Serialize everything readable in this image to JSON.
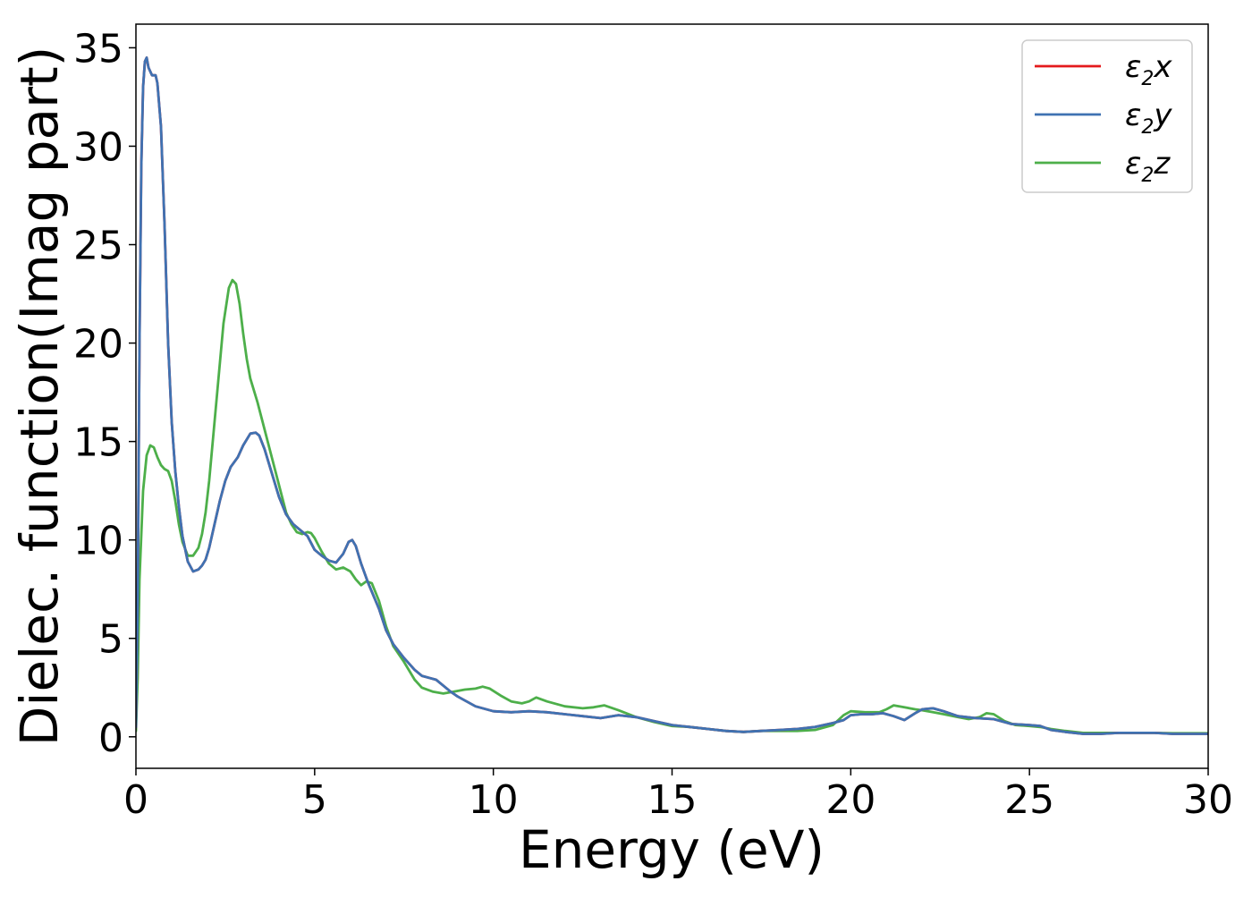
{
  "chart_data": {
    "type": "line",
    "xlabel": "Energy (eV)",
    "ylabel": "Dielec. function(Imag part)",
    "xlim": [
      0,
      30
    ],
    "ylim": [
      -1.6,
      36.2
    ],
    "xticks": [
      0,
      5,
      10,
      15,
      20,
      25,
      30
    ],
    "yticks": [
      0,
      5,
      10,
      15,
      20,
      25,
      30,
      35
    ],
    "xtick_labels": [
      "0",
      "5",
      "10",
      "15",
      "20",
      "25",
      "30"
    ],
    "ytick_labels": [
      "0",
      "5",
      "10",
      "15",
      "20",
      "25",
      "30",
      "35"
    ],
    "legend": {
      "position": "top-right"
    },
    "series": [
      {
        "name": "ε2x",
        "label_main": "ε",
        "label_sub": "2",
        "label_axis": "x",
        "color": "#e41a1c",
        "x": [
          0,
          0.05,
          0.1,
          0.15,
          0.2,
          0.25,
          0.3,
          0.35,
          0.45,
          0.55,
          0.6,
          0.7,
          0.8,
          0.9,
          1.0,
          1.1,
          1.2,
          1.3,
          1.45,
          1.6,
          1.75,
          1.85,
          1.95,
          2.05,
          2.2,
          2.35,
          2.5,
          2.65,
          2.85,
          3.0,
          3.2,
          3.35,
          3.45,
          3.6,
          3.8,
          4.0,
          4.2,
          4.4,
          4.6,
          4.8,
          5.0,
          5.2,
          5.4,
          5.6,
          5.8,
          5.95,
          6.05,
          6.15,
          6.3,
          6.5,
          6.8,
          7.0,
          7.2,
          7.5,
          7.8,
          8.0,
          8.2,
          8.4,
          8.6,
          8.8,
          9.0,
          9.5,
          10.0,
          10.5,
          11.0,
          11.5,
          12.0,
          12.5,
          13.0,
          13.5,
          14.0,
          14.5,
          15.0,
          15.5,
          16.0,
          16.5,
          17.0,
          17.5,
          18.0,
          18.5,
          19.0,
          19.5,
          19.8,
          20.0,
          20.3,
          20.6,
          20.9,
          21.2,
          21.5,
          21.8,
          22.0,
          22.3,
          22.6,
          23.0,
          23.5,
          24.0,
          24.5,
          25.0,
          25.3,
          25.6,
          26.0,
          26.5,
          27.0,
          27.5,
          28.0,
          28.5,
          29.0,
          29.5,
          30.0
        ],
        "values": [
          0.5,
          7.0,
          20.0,
          29.0,
          33.0,
          34.3,
          34.5,
          34.0,
          33.6,
          33.6,
          33.2,
          31.0,
          26.0,
          20.0,
          16.0,
          13.5,
          11.7,
          10.2,
          8.9,
          8.4,
          8.5,
          8.7,
          9.0,
          9.6,
          10.8,
          12.0,
          13.0,
          13.7,
          14.2,
          14.8,
          15.4,
          15.45,
          15.3,
          14.6,
          13.4,
          12.2,
          11.3,
          10.8,
          10.5,
          10.2,
          9.5,
          9.2,
          8.95,
          8.85,
          9.3,
          9.9,
          10.0,
          9.7,
          8.8,
          7.8,
          6.5,
          5.4,
          4.7,
          4.0,
          3.4,
          3.1,
          3.0,
          2.9,
          2.6,
          2.3,
          2.05,
          1.55,
          1.3,
          1.25,
          1.3,
          1.25,
          1.15,
          1.05,
          0.95,
          1.1,
          1.0,
          0.8,
          0.6,
          0.5,
          0.4,
          0.3,
          0.25,
          0.3,
          0.35,
          0.4,
          0.5,
          0.7,
          0.85,
          1.1,
          1.15,
          1.15,
          1.2,
          1.05,
          0.85,
          1.2,
          1.4,
          1.45,
          1.3,
          1.05,
          0.95,
          0.9,
          0.65,
          0.6,
          0.55,
          0.35,
          0.25,
          0.15,
          0.15,
          0.2,
          0.2,
          0.2,
          0.15,
          0.15,
          0.15
        ]
      },
      {
        "name": "ε2y",
        "label_main": "ε",
        "label_sub": "2",
        "label_axis": "y",
        "color": "#3f72b2",
        "x": [
          0,
          0.05,
          0.1,
          0.15,
          0.2,
          0.25,
          0.3,
          0.35,
          0.45,
          0.55,
          0.6,
          0.7,
          0.8,
          0.9,
          1.0,
          1.1,
          1.2,
          1.3,
          1.45,
          1.6,
          1.75,
          1.85,
          1.95,
          2.05,
          2.2,
          2.35,
          2.5,
          2.65,
          2.85,
          3.0,
          3.2,
          3.35,
          3.45,
          3.6,
          3.8,
          4.0,
          4.2,
          4.4,
          4.6,
          4.8,
          5.0,
          5.2,
          5.4,
          5.6,
          5.8,
          5.95,
          6.05,
          6.15,
          6.3,
          6.5,
          6.8,
          7.0,
          7.2,
          7.5,
          7.8,
          8.0,
          8.2,
          8.4,
          8.6,
          8.8,
          9.0,
          9.5,
          10.0,
          10.5,
          11.0,
          11.5,
          12.0,
          12.5,
          13.0,
          13.5,
          14.0,
          14.5,
          15.0,
          15.5,
          16.0,
          16.5,
          17.0,
          17.5,
          18.0,
          18.5,
          19.0,
          19.5,
          19.8,
          20.0,
          20.3,
          20.6,
          20.9,
          21.2,
          21.5,
          21.8,
          22.0,
          22.3,
          22.6,
          23.0,
          23.5,
          24.0,
          24.5,
          25.0,
          25.3,
          25.6,
          26.0,
          26.5,
          27.0,
          27.5,
          28.0,
          28.5,
          29.0,
          29.5,
          30.0
        ],
        "values": [
          0.5,
          7.0,
          20.0,
          29.0,
          33.0,
          34.3,
          34.5,
          34.0,
          33.6,
          33.6,
          33.2,
          31.0,
          26.0,
          20.0,
          16.0,
          13.5,
          11.7,
          10.2,
          8.9,
          8.4,
          8.5,
          8.7,
          9.0,
          9.6,
          10.8,
          12.0,
          13.0,
          13.7,
          14.2,
          14.8,
          15.4,
          15.45,
          15.3,
          14.6,
          13.4,
          12.2,
          11.3,
          10.8,
          10.5,
          10.2,
          9.5,
          9.2,
          8.95,
          8.85,
          9.3,
          9.9,
          10.0,
          9.7,
          8.8,
          7.8,
          6.5,
          5.4,
          4.7,
          4.0,
          3.4,
          3.1,
          3.0,
          2.9,
          2.6,
          2.3,
          2.05,
          1.55,
          1.3,
          1.25,
          1.3,
          1.25,
          1.15,
          1.05,
          0.95,
          1.1,
          1.0,
          0.8,
          0.6,
          0.5,
          0.4,
          0.3,
          0.25,
          0.3,
          0.35,
          0.4,
          0.5,
          0.7,
          0.85,
          1.1,
          1.15,
          1.15,
          1.2,
          1.05,
          0.85,
          1.2,
          1.4,
          1.45,
          1.3,
          1.05,
          0.95,
          0.9,
          0.65,
          0.6,
          0.55,
          0.35,
          0.25,
          0.15,
          0.15,
          0.2,
          0.2,
          0.2,
          0.15,
          0.15,
          0.15
        ]
      },
      {
        "name": "ε2z",
        "label_main": "ε",
        "label_sub": "2",
        "label_axis": "z",
        "color": "#4daf4a",
        "x": [
          0,
          0.05,
          0.1,
          0.2,
          0.3,
          0.4,
          0.5,
          0.6,
          0.7,
          0.8,
          0.9,
          1.0,
          1.1,
          1.2,
          1.3,
          1.45,
          1.6,
          1.75,
          1.85,
          1.95,
          2.05,
          2.15,
          2.3,
          2.45,
          2.6,
          2.7,
          2.8,
          2.9,
          3.0,
          3.1,
          3.2,
          3.4,
          3.6,
          3.8,
          4.0,
          4.2,
          4.35,
          4.5,
          4.65,
          4.8,
          4.9,
          5.0,
          5.2,
          5.4,
          5.6,
          5.8,
          6.0,
          6.15,
          6.3,
          6.45,
          6.6,
          6.8,
          7.0,
          7.2,
          7.5,
          7.8,
          8.0,
          8.3,
          8.6,
          8.9,
          9.2,
          9.5,
          9.7,
          9.9,
          10.2,
          10.5,
          10.8,
          11.0,
          11.2,
          11.5,
          12.0,
          12.5,
          12.8,
          13.1,
          13.5,
          14.0,
          14.5,
          15.0,
          15.5,
          16.0,
          16.5,
          17.0,
          17.5,
          18.0,
          18.5,
          19.0,
          19.5,
          19.8,
          20.0,
          20.4,
          20.8,
          21.0,
          21.2,
          21.5,
          21.8,
          22.0,
          22.3,
          22.6,
          23.0,
          23.3,
          23.6,
          23.8,
          24.0,
          24.3,
          24.6,
          25.0,
          25.3,
          25.6,
          26.0,
          26.5,
          27.0,
          27.5,
          28.0,
          28.5,
          29.0,
          29.5,
          30.0
        ],
        "values": [
          0.3,
          3.0,
          8.0,
          12.5,
          14.3,
          14.8,
          14.7,
          14.2,
          13.8,
          13.6,
          13.5,
          13.0,
          12.0,
          10.8,
          9.9,
          9.2,
          9.2,
          9.6,
          10.3,
          11.4,
          13.0,
          15.0,
          18.0,
          21.0,
          22.8,
          23.2,
          23.0,
          22.0,
          20.5,
          19.2,
          18.2,
          17.0,
          15.6,
          14.2,
          12.8,
          11.4,
          10.8,
          10.4,
          10.3,
          10.4,
          10.35,
          10.1,
          9.4,
          8.8,
          8.5,
          8.6,
          8.4,
          8.0,
          7.7,
          7.9,
          7.8,
          6.9,
          5.6,
          4.6,
          3.8,
          2.9,
          2.5,
          2.3,
          2.2,
          2.3,
          2.4,
          2.45,
          2.55,
          2.45,
          2.1,
          1.8,
          1.7,
          1.8,
          2.0,
          1.8,
          1.55,
          1.45,
          1.5,
          1.6,
          1.35,
          1.0,
          0.75,
          0.55,
          0.5,
          0.4,
          0.3,
          0.25,
          0.3,
          0.3,
          0.3,
          0.35,
          0.6,
          1.1,
          1.3,
          1.25,
          1.25,
          1.4,
          1.6,
          1.5,
          1.4,
          1.35,
          1.25,
          1.15,
          1.0,
          0.9,
          1.0,
          1.2,
          1.15,
          0.8,
          0.6,
          0.55,
          0.5,
          0.4,
          0.3,
          0.2,
          0.2,
          0.2,
          0.2,
          0.2,
          0.18,
          0.18,
          0.18
        ]
      }
    ]
  }
}
